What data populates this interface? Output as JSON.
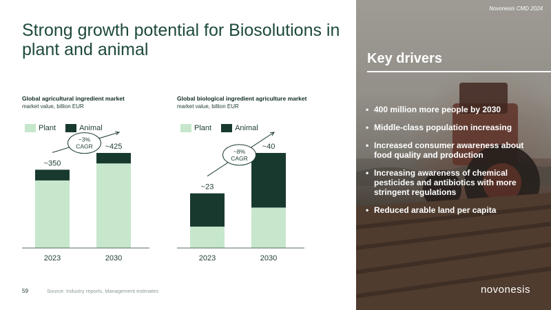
{
  "slide": {
    "title": "Strong growth potential for Biosolutions in plant and animal",
    "page_number": "59",
    "source": "Source: Industry reports, Management estimates"
  },
  "colors": {
    "plant": "#c6e7cc",
    "animal": "#183a2e",
    "title": "#1d4a39"
  },
  "charts": [
    {
      "title": "Global agricultural ingredient market",
      "subtitle": "market value, billion EUR",
      "legend": [
        "Plant",
        "Animal"
      ],
      "cagr": "~3%\nCAGR"
    },
    {
      "title": "Global biological ingredient agriculture market",
      "subtitle": "market value, billion EUR",
      "legend": [
        "Plant",
        "Animal"
      ],
      "cagr": "~8%\nCAGR"
    }
  ],
  "chart_data": [
    {
      "type": "bar",
      "stacked": true,
      "title": "Global agricultural ingredient market",
      "ylabel": "market value, billion EUR",
      "categories": [
        "2023",
        "2030"
      ],
      "series": [
        {
          "name": "Plant",
          "values": [
            302,
            378
          ]
        },
        {
          "name": "Animal",
          "values": [
            48,
            47
          ]
        }
      ],
      "totals": [
        "~350",
        "~425"
      ],
      "annotation": "~3% CAGR",
      "ylim": [
        0,
        425
      ]
    },
    {
      "type": "bar",
      "stacked": true,
      "title": "Global biological ingredient agriculture market",
      "ylabel": "market value, billion EUR",
      "categories": [
        "2023",
        "2030"
      ],
      "series": [
        {
          "name": "Plant",
          "values": [
            9,
            17
          ]
        },
        {
          "name": "Animal",
          "values": [
            14,
            23
          ]
        }
      ],
      "totals": [
        "~23",
        "~40"
      ],
      "annotation": "~8% CAGR",
      "ylim": [
        0,
        40
      ]
    }
  ],
  "header": {
    "event": "Novonesis CMD 2024"
  },
  "drivers": {
    "title": "Key drivers",
    "items": [
      "400 million more people by 2030",
      "Middle-class population increasing",
      "Increased consumer awareness about food quality and production",
      "Increasing awareness of chemical pesticides and antibiotics with more stringent regulations",
      "Reduced arable land per capita"
    ]
  },
  "brand": {
    "logo": "novonesis"
  }
}
